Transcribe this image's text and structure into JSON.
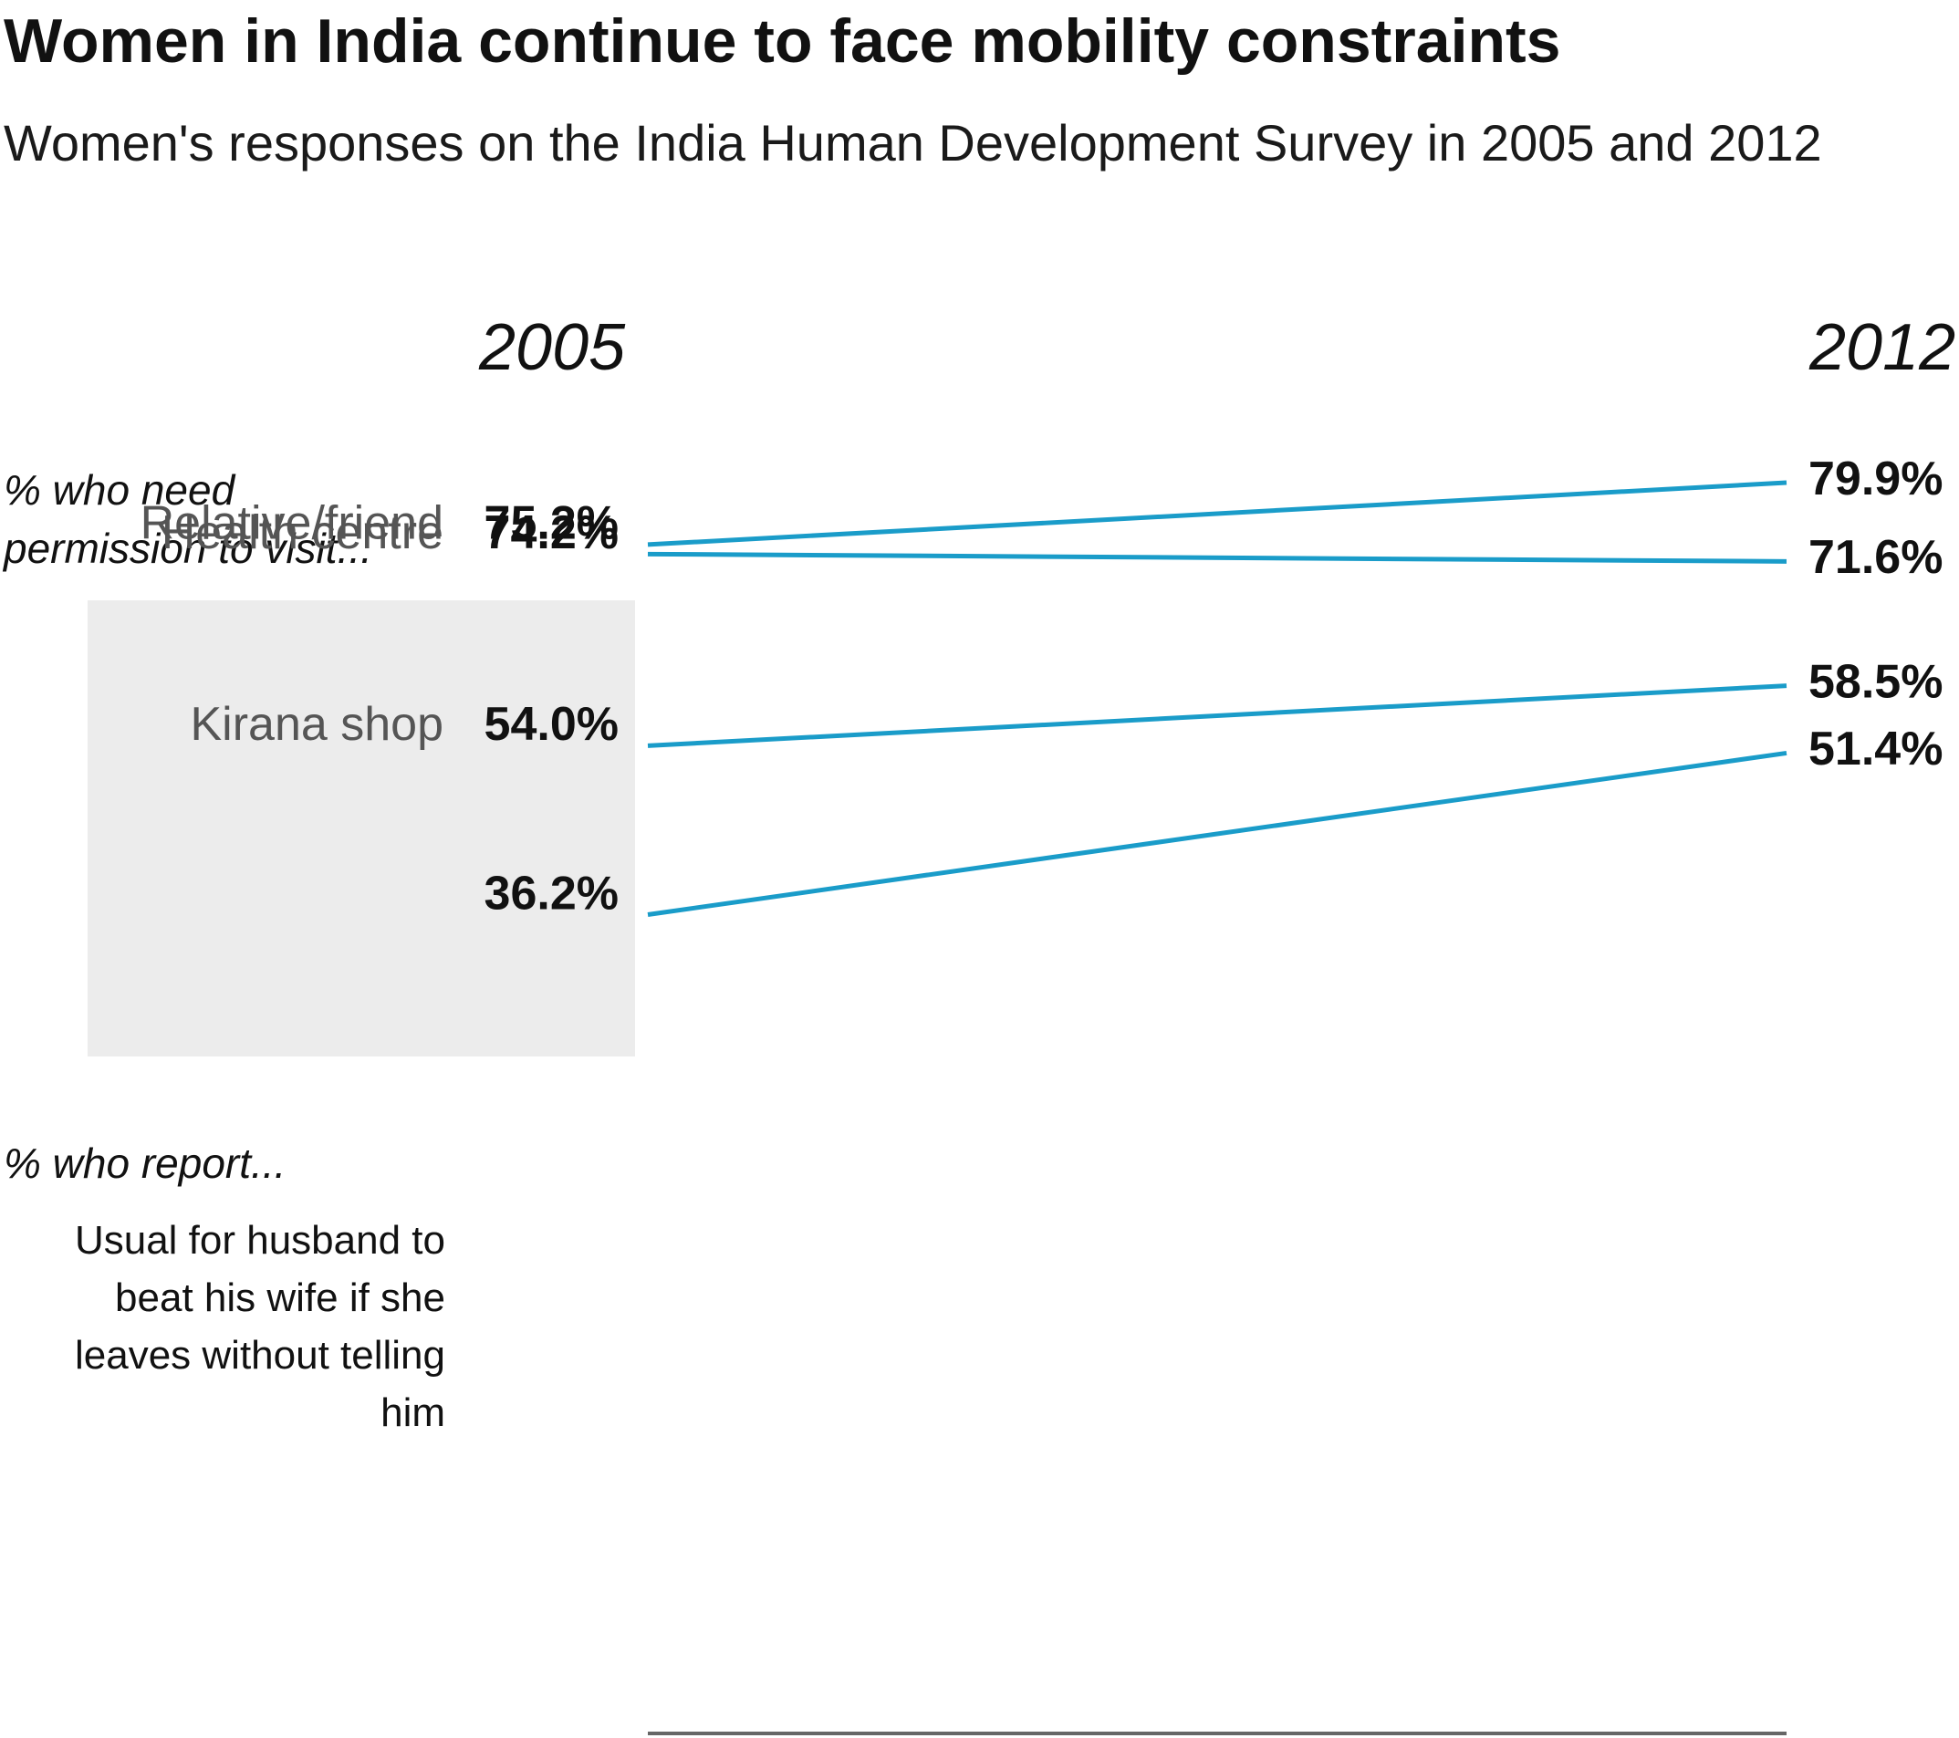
{
  "title": "Women in India continue to face mobility constraints",
  "subtitle": "Women's responses on the India Human Development Survey in 2005 and 2012",
  "sections": {
    "permission": "% who need\npermission to visit...",
    "report": "% who report..."
  },
  "colors": {
    "line": "#1a9cc9",
    "box": "#ececec",
    "axis": "#666666",
    "muted_label": "#555555"
  },
  "chart_data": {
    "type": "line",
    "x": [
      "2005",
      "2012"
    ],
    "ylabel": "",
    "series": [
      {
        "name": "Relative/friend",
        "values": [
          75.2,
          79.9
        ],
        "labels": [
          "75.2%",
          "79.9%"
        ],
        "group": "permission"
      },
      {
        "name": "Health centre",
        "values": [
          74.2,
          71.6
        ],
        "labels": [
          "74.2%",
          "71.6%"
        ],
        "group": "permission"
      },
      {
        "name": "Kirana shop",
        "values": [
          54.0,
          58.5
        ],
        "labels": [
          "54.0%",
          "58.5%"
        ],
        "group": "permission"
      },
      {
        "name": "Usual for husband to beat his wife if she leaves without telling him",
        "values": [
          36.2,
          51.4
        ],
        "labels": [
          "36.2%",
          "51.4%"
        ],
        "group": "report"
      }
    ]
  }
}
